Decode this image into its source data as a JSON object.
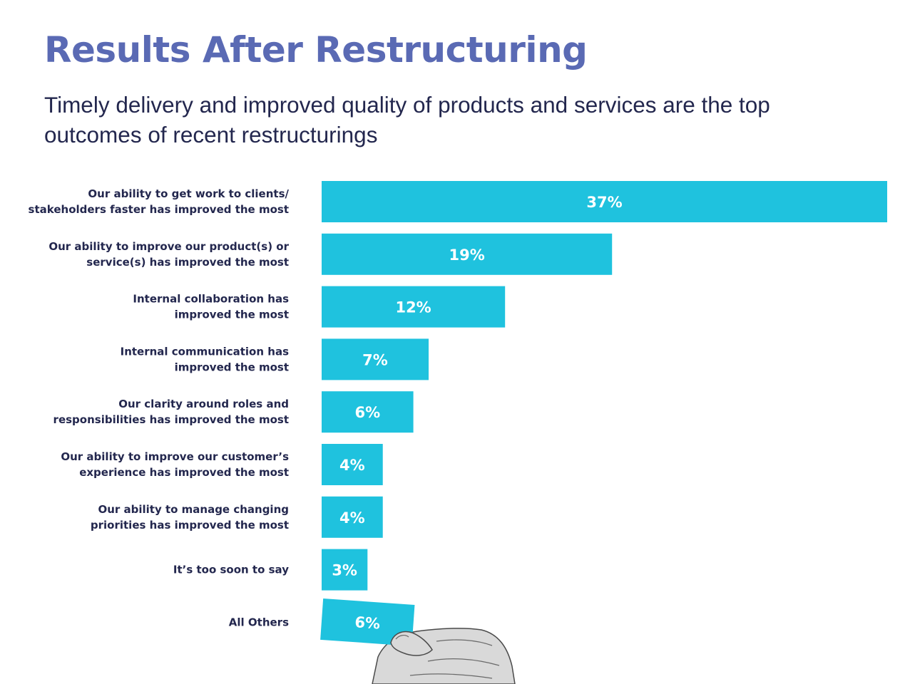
{
  "colors": {
    "title": "#5a6ab4",
    "text": "#23274e",
    "bar": "#1fc2de",
    "value_label": "#ffffff"
  },
  "chart_data": {
    "type": "bar",
    "orientation": "horizontal",
    "title": "Results After Restructuring",
    "subtitle": "Timely delivery and improved quality of products and services are the top outcomes of recent restructurings",
    "xlim": [
      0,
      37
    ],
    "grid": false,
    "categories": [
      [
        "Our ability to get work to clients/",
        "stakeholders faster has improved the most"
      ],
      [
        "Our ability to improve our product(s) or",
        "service(s) has improved the most"
      ],
      [
        "Internal collaboration has",
        "improved the most"
      ],
      [
        "Internal communication has",
        "improved the most"
      ],
      [
        "Our clarity around roles and",
        "responsibilities has improved the most"
      ],
      [
        "Our ability to improve our customer’s",
        "experience has improved the most"
      ],
      [
        "Our ability to manage changing",
        "priorities has improved the most"
      ],
      [
        "It’s too soon to say"
      ],
      [
        "All Others"
      ]
    ],
    "values": [
      37,
      19,
      12,
      7,
      6,
      4,
      4,
      3,
      6
    ],
    "value_labels": [
      "37%",
      "19%",
      "12%",
      "7%",
      "6%",
      "4%",
      "4%",
      "3%",
      "6%"
    ],
    "annotations": [
      "The 'All Others' bar is drawn as a tilted card held by a hand"
    ]
  }
}
